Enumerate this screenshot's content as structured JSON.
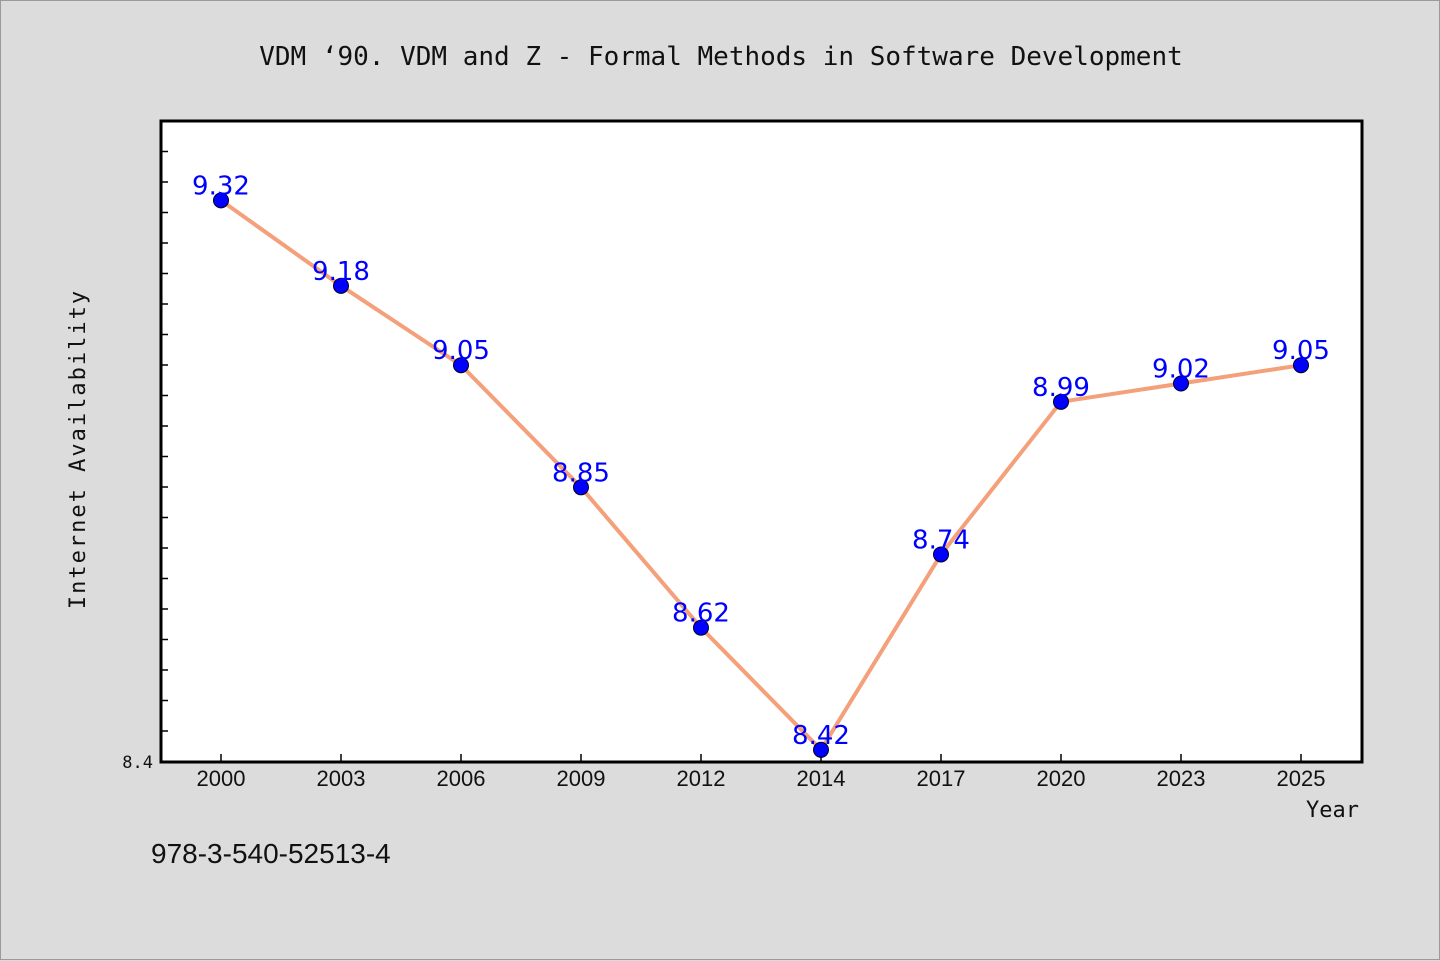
{
  "chart_data": {
    "type": "line",
    "title": "VDM  ‘90. VDM and Z - Formal Methods in Software Development",
    "xlabel": "Year",
    "ylabel": "Internet Availability",
    "categories": [
      "2000",
      "2003",
      "2006",
      "2009",
      "2012",
      "2014",
      "2017",
      "2020",
      "2023",
      "2025"
    ],
    "series": [
      {
        "values": [
          9.32,
          9.18,
          9.05,
          8.85,
          8.62,
          8.42,
          8.74,
          8.99,
          9.02,
          9.05
        ]
      }
    ],
    "y_tick_labels": [
      "8.4"
    ],
    "ylim": [
      8.4,
      9.45
    ],
    "grid": false,
    "line_color": "#f4a07a",
    "marker_color": "#0000ff",
    "data_label_color": "#0000ff",
    "annotation": "978-3-540-52513-4"
  }
}
